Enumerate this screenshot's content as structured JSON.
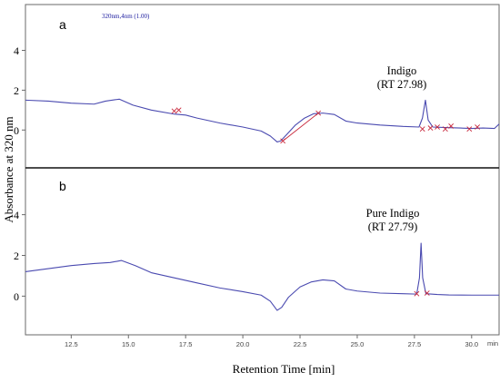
{
  "colors": {
    "trace": "#4a4ab0",
    "marker": "#c8283c",
    "frame": "#6a6a6a",
    "divider": "#111111"
  },
  "chart_data": {
    "type": "line",
    "xlabel": "Retention Time [min]",
    "ylabel": "Absorbance at 320 nm",
    "x_unit_label": "min",
    "xlim": [
      10.5,
      31.2
    ],
    "x_ticks": [
      12.5,
      15.0,
      17.5,
      20.0,
      22.5,
      25.0,
      27.5,
      30.0
    ],
    "x_tick_labels": [
      "12.5",
      "15.0",
      "17.5",
      "20.0",
      "22.5",
      "25.0",
      "27.5",
      "30.0"
    ],
    "panels": [
      {
        "label": "a",
        "detector_label": "320nm,4nm (1.00)",
        "ylim": [
          -1.9,
          6.3
        ],
        "y_ticks": [
          0,
          2,
          4
        ],
        "y_tick_labels": [
          "0",
          "2",
          "4"
        ],
        "annotation_lines": [
          "Indigo",
          "(RT 27.98)"
        ],
        "annotation_peak_x": 27.98,
        "trace": {
          "x": [
            10.5,
            11.5,
            12.5,
            13.5,
            14.0,
            14.6,
            15.2,
            16.0,
            17.0,
            17.5,
            18.0,
            19.0,
            20.0,
            20.8,
            21.2,
            21.5,
            21.65,
            21.9,
            22.3,
            22.7,
            23.1,
            23.5,
            24.0,
            24.5,
            25.0,
            26.0,
            27.0,
            27.7,
            27.85,
            27.98,
            28.1,
            28.3,
            29.0,
            29.5,
            30.0,
            30.5,
            31.0,
            31.2
          ],
          "y": [
            1.5,
            1.45,
            1.35,
            1.3,
            1.45,
            1.55,
            1.25,
            1.0,
            0.8,
            0.75,
            0.6,
            0.35,
            0.15,
            -0.05,
            -0.3,
            -0.6,
            -0.55,
            -0.25,
            0.25,
            0.6,
            0.82,
            0.85,
            0.78,
            0.45,
            0.35,
            0.25,
            0.18,
            0.15,
            0.6,
            1.5,
            0.5,
            0.15,
            0.12,
            0.1,
            0.08,
            0.1,
            0.08,
            0.3
          ]
        },
        "integration_marks": [
          {
            "x": 17.0,
            "y": 0.95
          },
          {
            "x": 17.2,
            "y": 1.0
          },
          {
            "x": 21.75,
            "y": -0.55
          },
          {
            "x": 23.3,
            "y": 0.85
          },
          {
            "x": 27.85,
            "y": 0.05
          },
          {
            "x": 28.2,
            "y": 0.1
          },
          {
            "x": 28.5,
            "y": 0.15
          },
          {
            "x": 28.85,
            "y": 0.05
          },
          {
            "x": 29.1,
            "y": 0.2
          },
          {
            "x": 29.9,
            "y": 0.05
          },
          {
            "x": 30.25,
            "y": 0.15
          }
        ],
        "baseline_segments": [
          {
            "x1": 21.75,
            "y1": -0.55,
            "x2": 23.3,
            "y2": 0.85
          }
        ]
      },
      {
        "label": "b",
        "ylim": [
          -1.9,
          6.3
        ],
        "y_ticks": [
          0,
          2,
          4
        ],
        "y_tick_labels": [
          "0",
          "2",
          "4"
        ],
        "annotation_lines": [
          "Pure Indigo",
          "(RT 27.79)"
        ],
        "annotation_peak_x": 27.79,
        "trace": {
          "x": [
            10.5,
            11.5,
            12.5,
            13.5,
            14.2,
            14.7,
            15.3,
            16.0,
            17.0,
            18.0,
            19.0,
            20.0,
            20.8,
            21.2,
            21.5,
            21.7,
            22.0,
            22.5,
            23.0,
            23.5,
            24.0,
            24.5,
            25.0,
            26.0,
            27.0,
            27.6,
            27.72,
            27.79,
            27.86,
            28.0,
            28.5,
            29.0,
            30.0,
            31.0,
            31.2
          ],
          "y": [
            1.2,
            1.35,
            1.5,
            1.6,
            1.65,
            1.75,
            1.5,
            1.15,
            0.9,
            0.65,
            0.4,
            0.22,
            0.05,
            -0.25,
            -0.7,
            -0.55,
            -0.05,
            0.45,
            0.7,
            0.8,
            0.75,
            0.35,
            0.25,
            0.15,
            0.12,
            0.1,
            0.9,
            2.6,
            0.9,
            0.12,
            0.08,
            0.06,
            0.05,
            0.05,
            0.05
          ]
        },
        "integration_marks": [
          {
            "x": 27.6,
            "y": 0.12
          },
          {
            "x": 28.05,
            "y": 0.15
          }
        ],
        "baseline_segments": []
      }
    ]
  }
}
